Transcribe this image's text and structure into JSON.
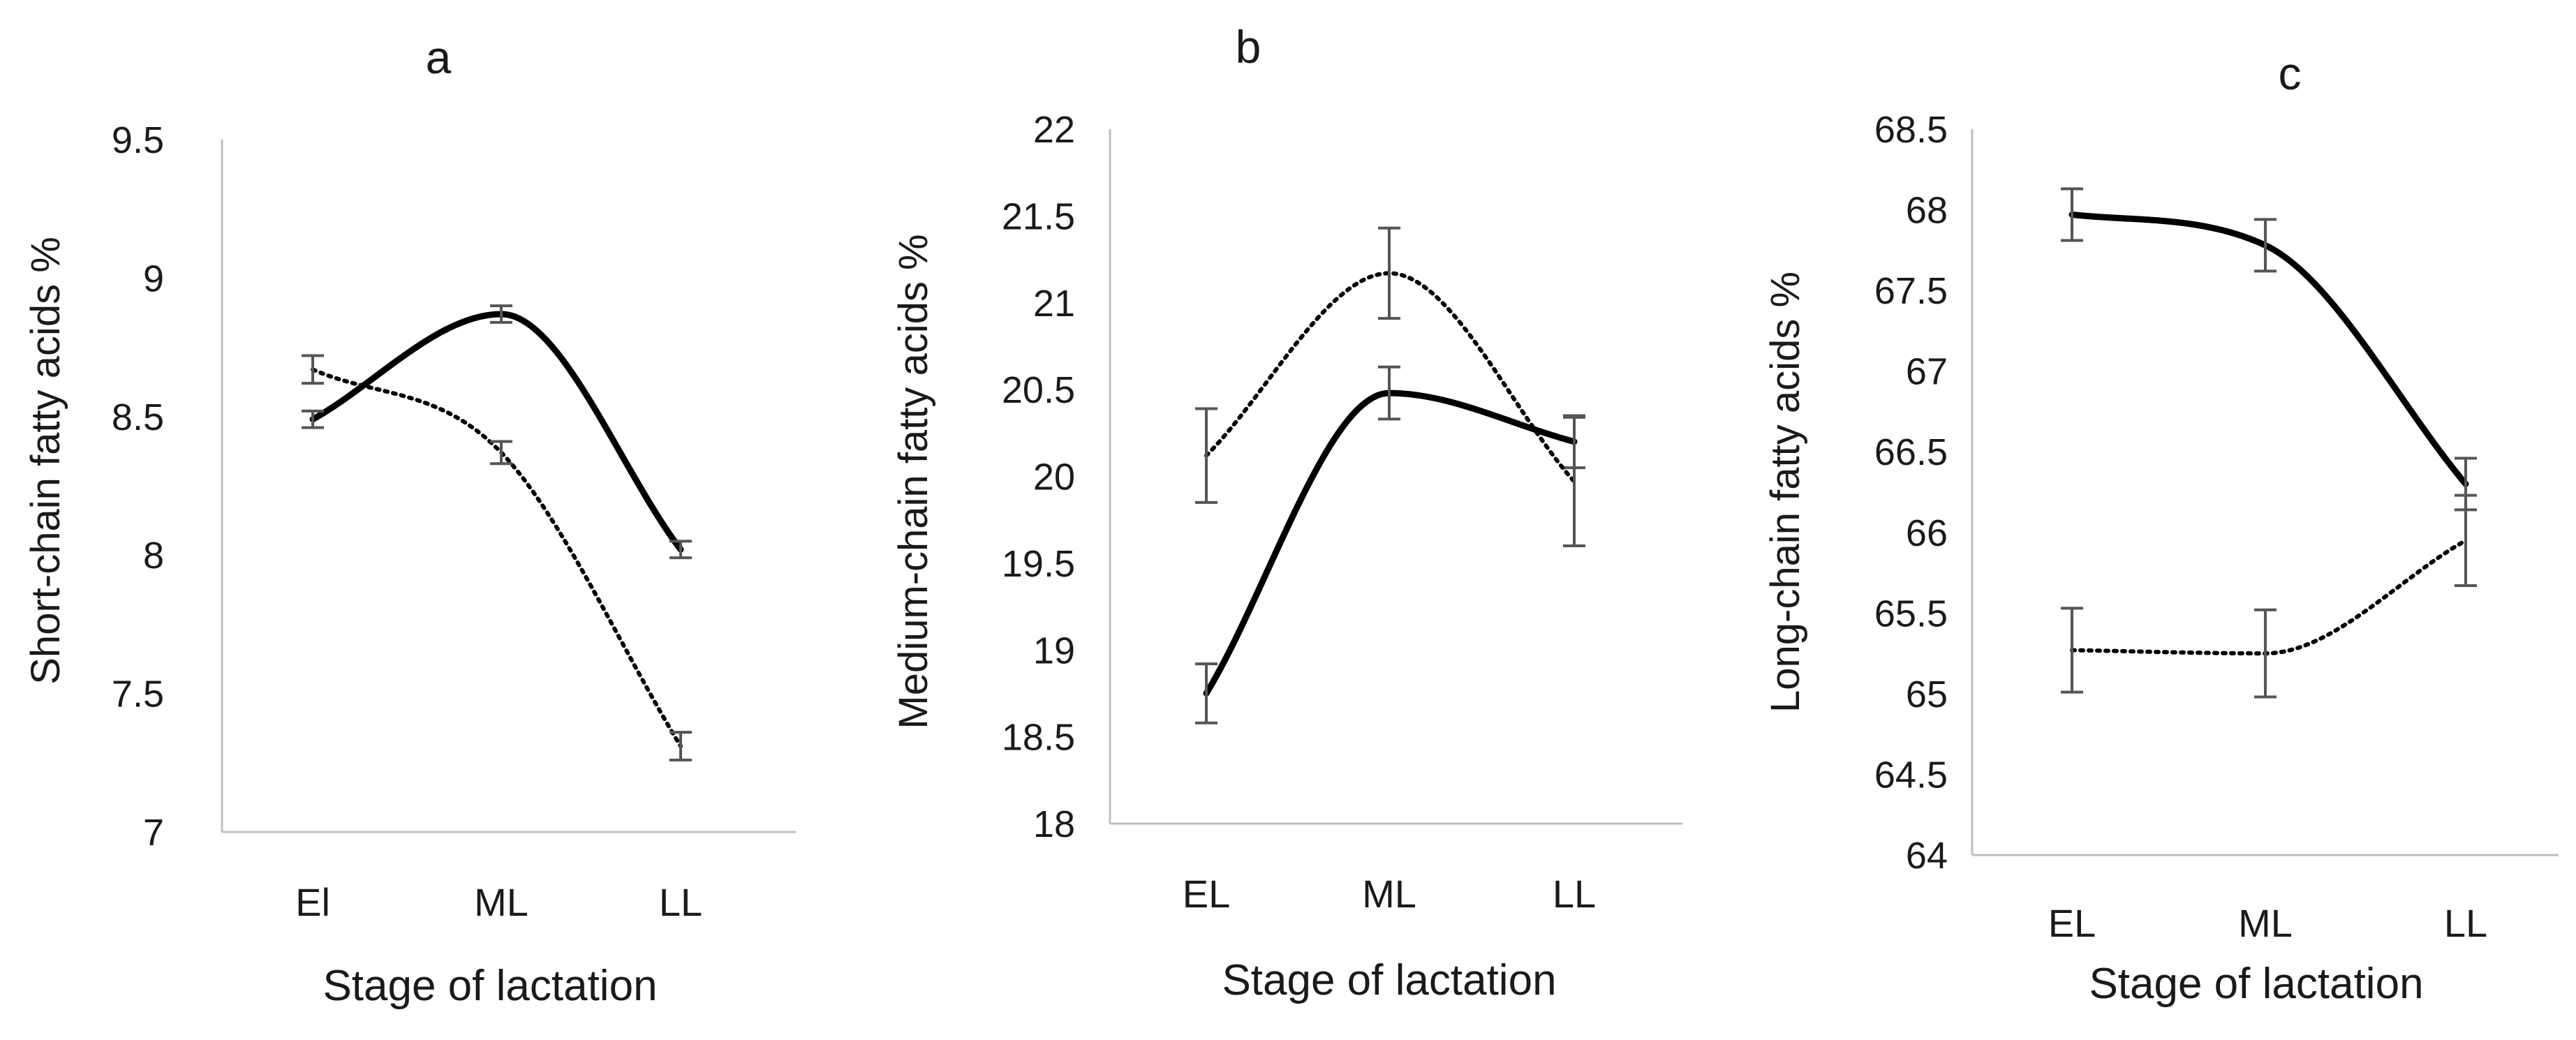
{
  "chart_data": [
    {
      "type": "line",
      "title": "a",
      "xlabel": "Stage of lactation",
      "ylabel": "Short-chain fatty acids %",
      "categories": [
        "El",
        "ML",
        "LL"
      ],
      "ylim": [
        7,
        9.5
      ],
      "yticks": [
        "7",
        "7.5",
        "8",
        "8.5",
        "9",
        "9.5"
      ],
      "series": [
        {
          "name": "solid",
          "style": "solid",
          "values": [
            8.49,
            8.87,
            8.02
          ],
          "errors": [
            0.03,
            0.03,
            0.03
          ]
        },
        {
          "name": "dotted",
          "style": "dotted",
          "values": [
            8.67,
            8.37,
            7.31
          ],
          "errors": [
            0.05,
            0.04,
            0.05
          ]
        }
      ]
    },
    {
      "type": "line",
      "title": "b",
      "xlabel": "Stage of lactation",
      "ylabel": "Medium-chain fatty acids %",
      "categories": [
        "EL",
        "ML",
        "LL"
      ],
      "ylim": [
        18,
        22
      ],
      "yticks": [
        "18",
        "18.5",
        "19",
        "19.5",
        "20",
        "20.5",
        "21",
        "21.5",
        "22"
      ],
      "series": [
        {
          "name": "solid",
          "style": "solid",
          "values": [
            18.75,
            20.48,
            20.2
          ],
          "errors": [
            0.17,
            0.15,
            0.15
          ]
        },
        {
          "name": "dotted",
          "style": "dotted",
          "values": [
            20.12,
            21.17,
            19.97
          ],
          "errors": [
            0.27,
            0.26,
            0.37
          ]
        }
      ]
    },
    {
      "type": "line",
      "title": "c",
      "xlabel": "Stage of lactation",
      "ylabel": "Long-chain fatty acids %",
      "categories": [
        "EL",
        "ML",
        "LL"
      ],
      "ylim": [
        64,
        68.5
      ],
      "yticks": [
        "64",
        "64.5",
        "65",
        "65.5",
        "66",
        "66.5",
        "67",
        "67.5",
        "68",
        "68.5"
      ],
      "series": [
        {
          "name": "solid",
          "style": "solid",
          "values": [
            67.97,
            67.78,
            66.3
          ],
          "errors": [
            0.16,
            0.16,
            0.16
          ]
        },
        {
          "name": "dotted",
          "style": "dotted",
          "values": [
            65.27,
            65.25,
            65.95
          ],
          "errors": [
            0.26,
            0.27,
            0.28
          ]
        }
      ]
    }
  ]
}
